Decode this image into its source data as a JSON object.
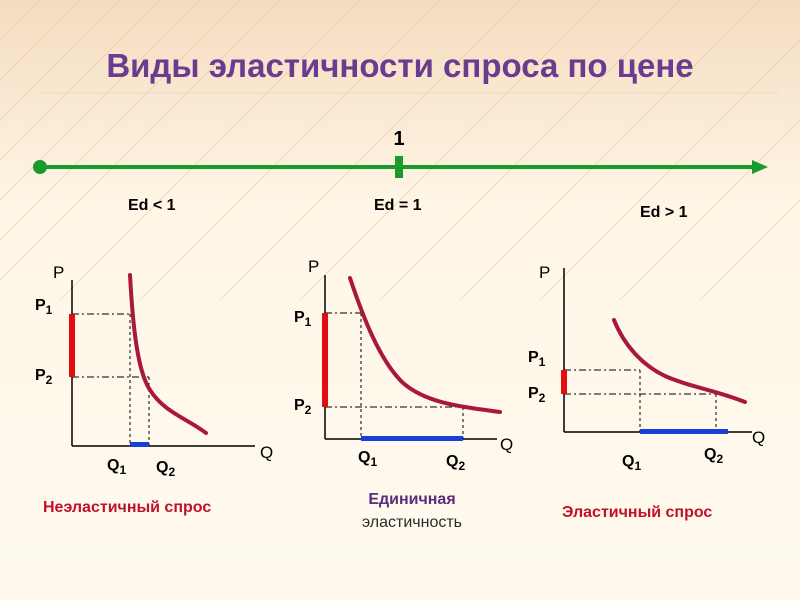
{
  "title": "Виды эластичности спроса по цене",
  "scale": {
    "marker": "1",
    "labels": [
      "Ed < 1",
      "Ed = 1",
      "Ed > 1"
    ]
  },
  "colors": {
    "title": "#6a3b8e",
    "curve": "#a8183a",
    "price_change": "#e01010",
    "quantity_change": "#1a3fd8",
    "scale_line": "#1a9a2c",
    "caption_red": "#c0102a",
    "caption_purple": "#5a2c7e"
  },
  "graphs": [
    {
      "p_axis": "P",
      "q_axis": "Q",
      "p1": "P",
      "p1_sub": "1",
      "p2": "P",
      "p2_sub": "2",
      "q1": "Q",
      "q1_sub": "1",
      "q2": "Q",
      "q2_sub": "2",
      "caption_lines": [
        "Неэластичный спрос"
      ]
    },
    {
      "p_axis": "P",
      "q_axis": "Q",
      "p1": "P",
      "p1_sub": "1",
      "p2": "P",
      "p2_sub": "2",
      "q1": "Q",
      "q1_sub": "1",
      "q2": "Q",
      "q2_sub": "2",
      "caption_lines": [
        "Единичная",
        "эластичность"
      ]
    },
    {
      "p_axis": "P",
      "q_axis": "Q",
      "p1": "P",
      "p1_sub": "1",
      "p2": "P",
      "p2_sub": "2",
      "q1": "Q",
      "q1_sub": "1",
      "q2": "Q",
      "q2_sub": "2",
      "caption_lines": [
        "Эластичный спрос"
      ]
    }
  ]
}
